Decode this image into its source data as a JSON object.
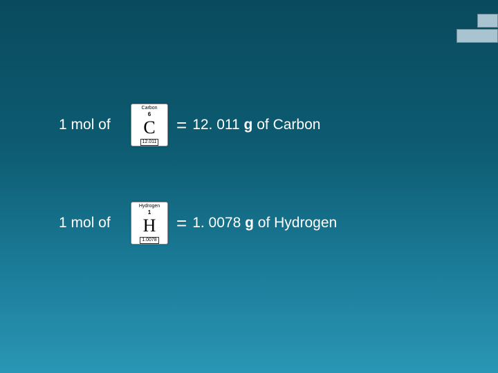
{
  "background": {
    "gradient_top": "#0a4a5e",
    "gradient_mid": "#1a7a96",
    "gradient_bottom": "#2a96b5"
  },
  "decoration": {
    "bar_color": "#a8c4d0",
    "border_color": "#6a8a96"
  },
  "rows": [
    {
      "prefix": "1 mol of",
      "tile": {
        "name": "Carbon",
        "atomic_number": "6",
        "symbol": "C",
        "atomic_mass": "12.011",
        "bg": "#ffffff",
        "text": "#000000"
      },
      "equals": "=",
      "result_mass": "12. 011",
      "result_unit": "g",
      "result_of": "of Carbon"
    },
    {
      "prefix": "1 mol of",
      "tile": {
        "name": "Hydrogen",
        "atomic_number": "1",
        "symbol": "H",
        "atomic_mass": "1.0078",
        "bg": "#ffffff",
        "text": "#000000"
      },
      "equals": "=",
      "result_mass": "1. 0078",
      "result_unit": "g",
      "result_of": "of Hydrogen"
    }
  ],
  "typography": {
    "body_font": "Arial",
    "body_size_pt": 16,
    "symbol_font": "Times New Roman",
    "symbol_size_pt": 20,
    "text_color": "#ffffff"
  }
}
